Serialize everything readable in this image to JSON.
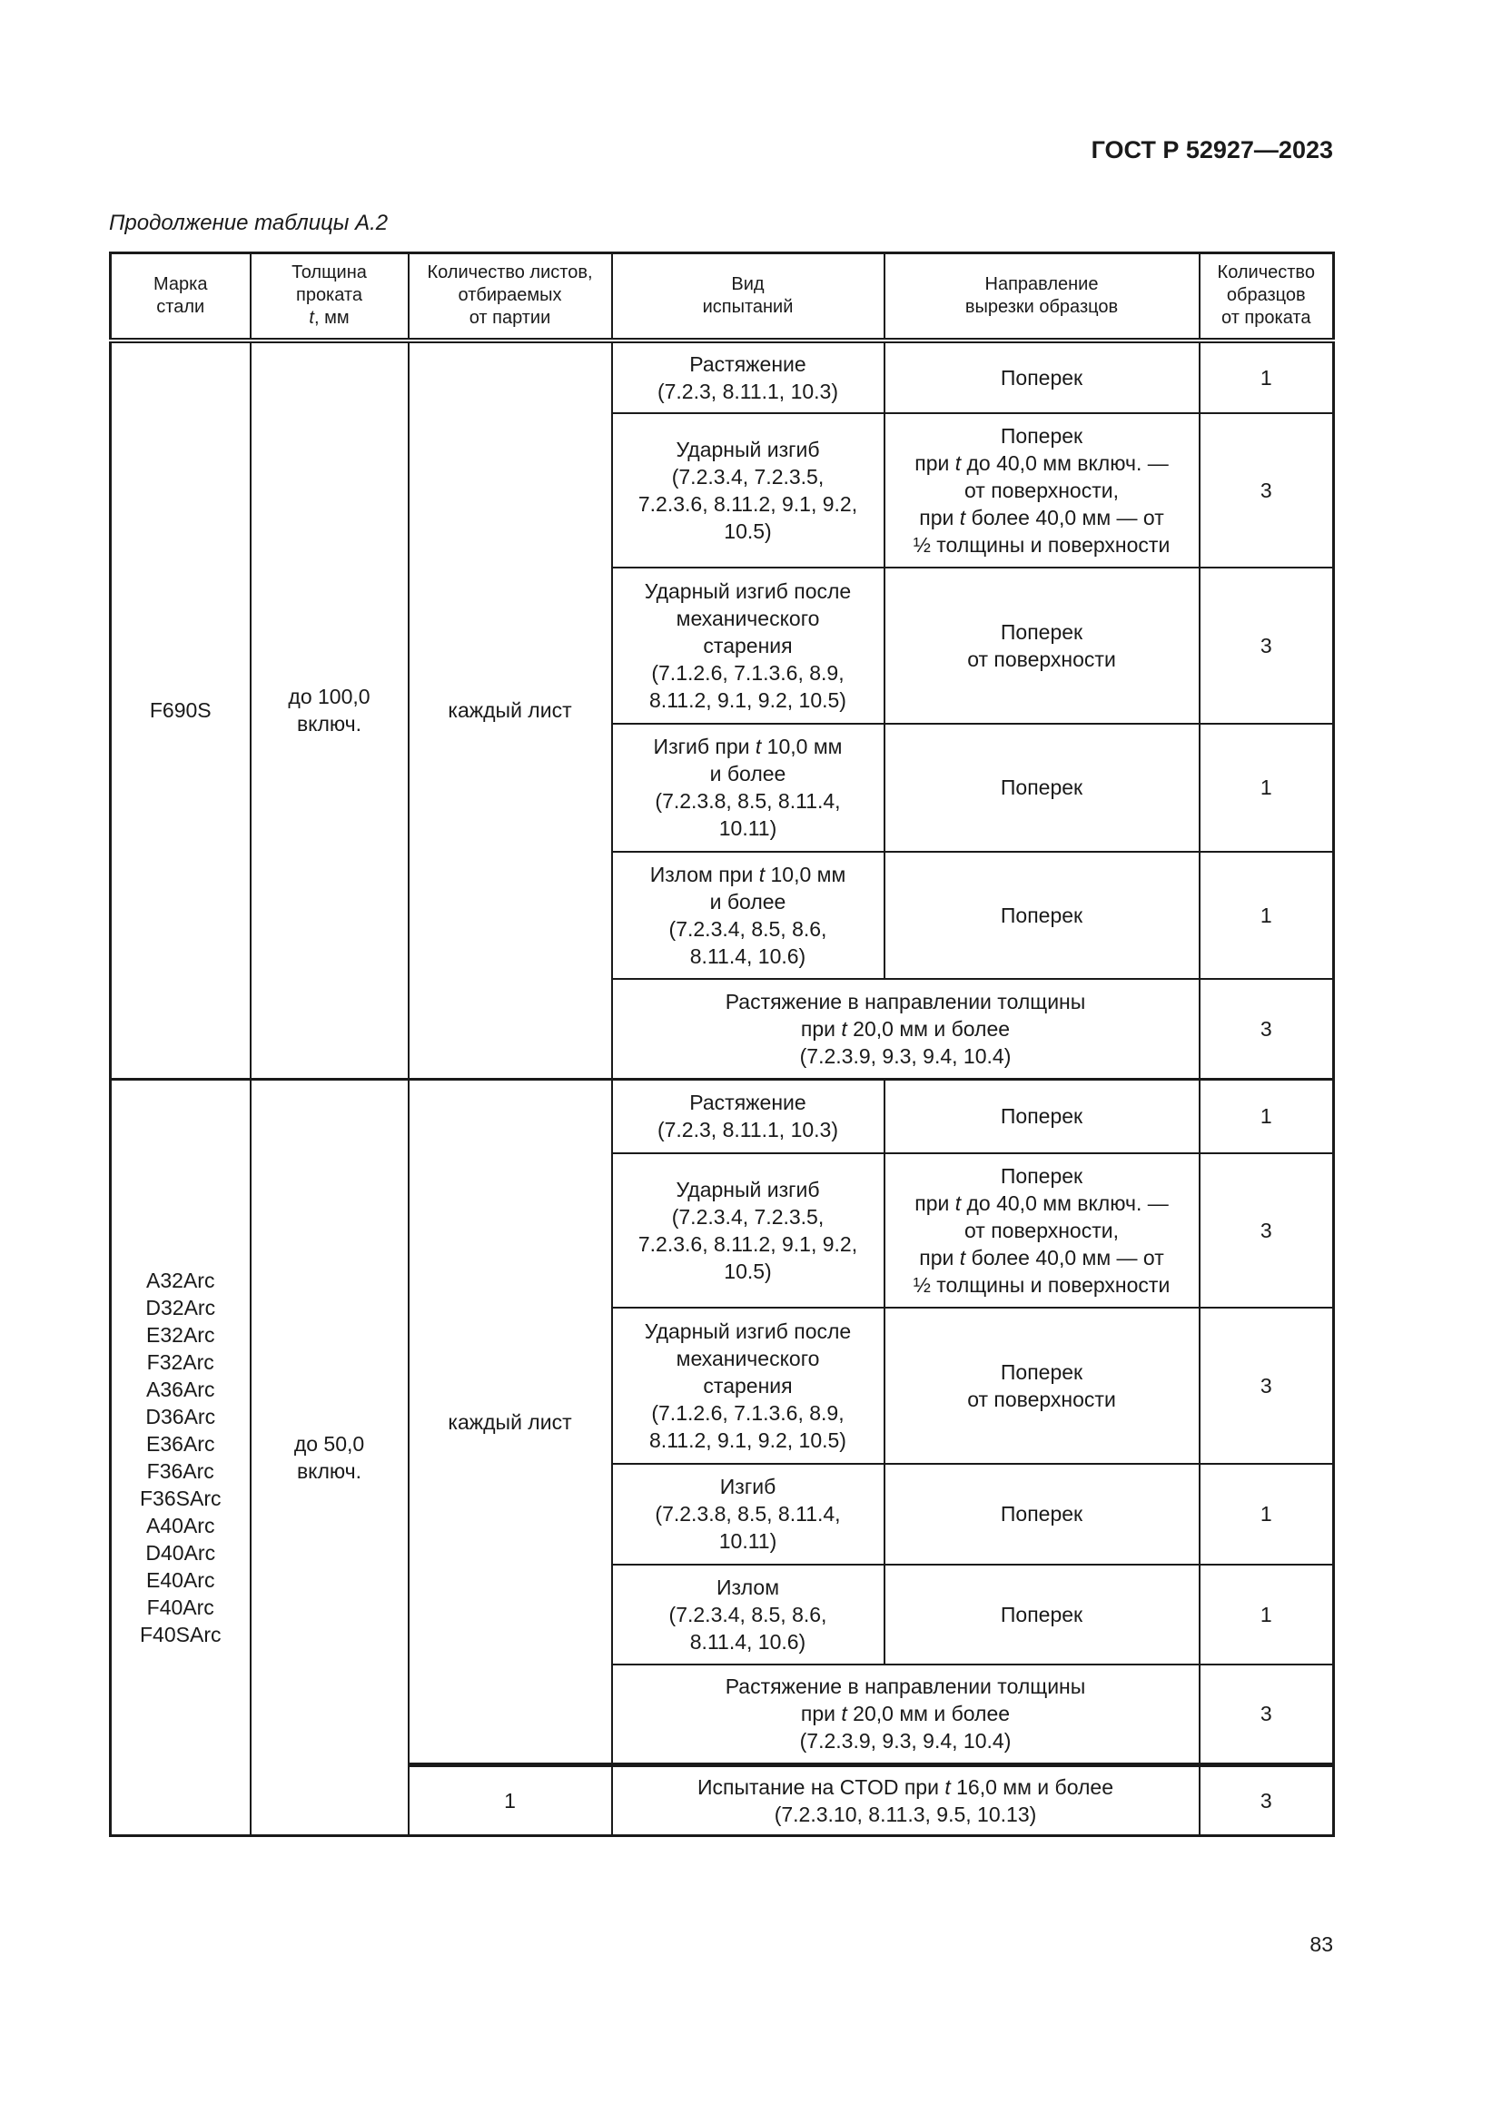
{
  "header": {
    "doc_code": "ГОСТ Р 52927—2023"
  },
  "caption": "Продолжение таблицы А.2",
  "table": {
    "columns": [
      "Марка\nстали",
      "Толщина\nпроката\nt, мм",
      "Количество листов,\nотбираемых\nот партии",
      "Вид\nиспытаний",
      "Направление\nвырезки образцов",
      "Количество\nобразцов\nот проката"
    ],
    "groups": [
      {
        "grade": "F690S",
        "thickness": "до 100,0\nвключ.",
        "sheets": "каждый лист",
        "rows": [
          {
            "test": "Растяжение\n(7.2.3, 8.11.1, 10.3)",
            "direction": "Поперек",
            "qty": "1"
          },
          {
            "test": "Ударный изгиб\n(7.2.3.4, 7.2.3.5,\n7.2.3.6, 8.11.2, 9.1, 9.2,\n10.5)",
            "direction": "Поперек\nпри t до 40,0 мм включ. —\nот поверхности,\nпри t более 40,0 мм — от\n½ толщины и поверхности",
            "qty": "3"
          },
          {
            "test": "Ударный изгиб после\nмеханического\nстарения\n(7.1.2.6, 7.1.3.6, 8.9,\n8.11.2, 9.1, 9.2, 10.5)",
            "direction": "Поперек\nот поверхности",
            "qty": "3"
          },
          {
            "test": "Изгиб при t 10,0 мм\nи более\n(7.2.3.8, 8.5, 8.11.4,\n10.11)",
            "direction": "Поперек",
            "qty": "1"
          },
          {
            "test": "Излом при t 10,0 мм\nи более\n(7.2.3.4, 8.5, 8.6,\n8.11.4, 10.6)",
            "direction": "Поперек",
            "qty": "1"
          },
          {
            "test": "Растяжение в направлении толщины\nпри t 20,0 мм и более\n(7.2.3.9, 9.3, 9.4, 10.4)",
            "qty": "3"
          }
        ]
      },
      {
        "grade": "A32Arc\nD32Arc\nE32Arc\nF32Arc\nA36Arc\nD36Arc\nE36Arc\nF36Arc\nF36SArc\nA40Arc\nD40Arc\nE40Arc\nF40Arc\nF40SArc",
        "thickness": "до 50,0\nвключ.",
        "sheets": "каждый лист",
        "rows": [
          {
            "test": "Растяжение\n(7.2.3, 8.11.1, 10.3)",
            "direction": "Поперек",
            "qty": "1"
          },
          {
            "test": "Ударный изгиб\n(7.2.3.4, 7.2.3.5,\n7.2.3.6, 8.11.2, 9.1, 9.2,\n10.5)",
            "direction": "Поперек\nпри t до 40,0 мм включ. —\nот поверхности,\nпри t более 40,0 мм — от\n½ толщины и поверхности",
            "qty": "3"
          },
          {
            "test": "Ударный изгиб после\nмеханического\nстарения\n(7.1.2.6, 7.1.3.6, 8.9,\n8.11.2, 9.1, 9.2, 10.5)",
            "direction": "Поперек\nот поверхности",
            "qty": "3"
          },
          {
            "test": "Изгиб\n(7.2.3.8, 8.5, 8.11.4,\n10.11)",
            "direction": "Поперек",
            "qty": "1"
          },
          {
            "test": "Излом\n(7.2.3.4, 8.5, 8.6,\n8.11.4, 10.6)",
            "direction": "Поперек",
            "qty": "1"
          },
          {
            "test": "Растяжение в направлении толщины\nпри t 20,0 мм и более\n(7.2.3.9, 9.3, 9.4, 10.4)",
            "qty": "3"
          }
        ],
        "ctod": {
          "sheets": "1",
          "test": "Испытание на CTOD при t 16,0 мм и более\n(7.2.3.10, 8.11.3, 9.5, 10.13)",
          "qty": "3"
        }
      }
    ]
  },
  "page_number": "83"
}
